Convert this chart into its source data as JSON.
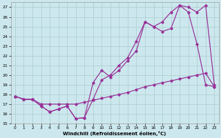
{
  "xlabel": "Windchill (Refroidissement éolien,°C)",
  "bg_color": "#cce8ee",
  "grid_color": "#aacccc",
  "line_color": "#993399",
  "xlim": [
    -0.5,
    23.5
  ],
  "ylim": [
    15,
    27.5
  ],
  "yticks": [
    15,
    16,
    17,
    18,
    19,
    20,
    21,
    22,
    23,
    24,
    25,
    26,
    27
  ],
  "xticks": [
    0,
    1,
    2,
    3,
    4,
    5,
    6,
    7,
    8,
    9,
    10,
    11,
    12,
    13,
    14,
    15,
    16,
    17,
    18,
    19,
    20,
    21,
    22,
    23
  ],
  "line1_x": [
    0,
    1,
    2,
    3,
    4,
    5,
    6,
    7,
    8,
    9,
    10,
    11,
    12,
    13,
    14,
    15,
    16,
    17,
    18,
    19,
    20,
    21,
    22,
    23
  ],
  "line1_y": [
    17.8,
    17.5,
    17.5,
    16.8,
    16.2,
    16.5,
    16.8,
    15.5,
    15.6,
    19.2,
    20.5,
    19.8,
    20.5,
    21.5,
    22.5,
    25.5,
    25.0,
    24.5,
    24.8,
    27.2,
    26.5,
    23.2,
    19.0,
    18.8
  ],
  "line2_x": [
    0,
    1,
    2,
    3,
    4,
    5,
    6,
    7,
    8,
    9,
    10,
    11,
    12,
    13,
    14,
    15,
    16,
    17,
    18,
    19,
    20,
    21,
    22,
    23
  ],
  "line2_y": [
    17.8,
    17.5,
    17.5,
    16.8,
    16.2,
    16.5,
    16.8,
    15.5,
    15.6,
    17.5,
    19.5,
    20.0,
    21.0,
    21.8,
    23.5,
    25.5,
    25.0,
    25.5,
    26.5,
    27.2,
    27.0,
    26.5,
    27.2,
    19.0
  ],
  "line3_x": [
    0,
    1,
    2,
    3,
    4,
    5,
    6,
    7,
    8,
    9,
    10,
    11,
    12,
    13,
    14,
    15,
    16,
    17,
    18,
    19,
    20,
    21,
    22,
    23
  ],
  "line3_y": [
    17.8,
    17.5,
    17.5,
    17.0,
    17.0,
    17.0,
    17.0,
    17.0,
    17.2,
    17.4,
    17.6,
    17.8,
    18.0,
    18.2,
    18.5,
    18.8,
    19.0,
    19.2,
    19.4,
    19.6,
    19.8,
    20.0,
    20.2,
    18.8
  ]
}
